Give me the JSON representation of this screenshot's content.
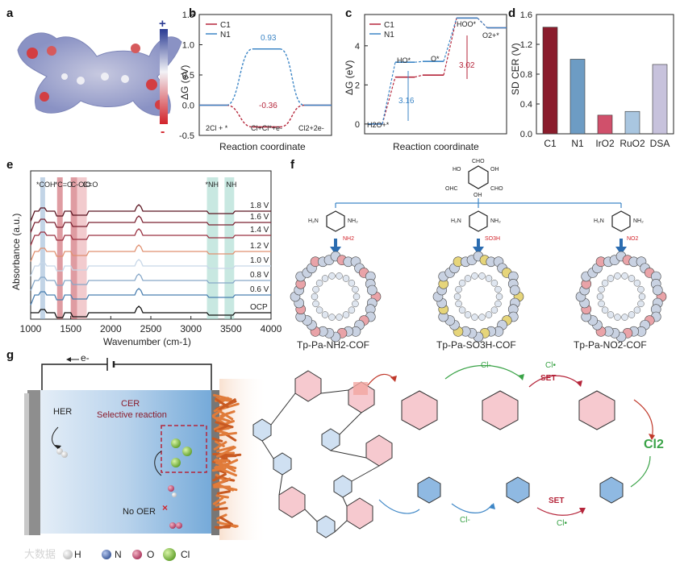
{
  "panel_labels": {
    "a": "a",
    "b": "b",
    "c": "c",
    "d": "d",
    "e": "e",
    "f": "f",
    "g": "g"
  },
  "panel_a": {
    "scale_plus": "+",
    "scale_minus": "-"
  },
  "chart_data": [
    {
      "panel": "b",
      "type": "line",
      "xlabel": "Reaction coordinate",
      "ylabel": "ΔG (eV)",
      "ylim": [
        -0.5,
        1.5
      ],
      "yticks": [
        "1.5",
        "1.0",
        "0.5",
        "0.0",
        "-0.5"
      ],
      "states": [
        "2Cl + *",
        "Cl+Cl*+e-",
        "Cl2+2e-"
      ],
      "series": [
        {
          "name": "C1",
          "color": "#b5253a",
          "values": [
            0,
            -0.36,
            0
          ]
        },
        {
          "name": "N1",
          "color": "#3d86c6",
          "values": [
            0,
            0.93,
            0
          ]
        }
      ],
      "annotations": [
        "0.93",
        "-0.36"
      ]
    },
    {
      "panel": "c",
      "type": "line",
      "xlabel": "Reaction coordinate",
      "ylabel": "ΔG (eV)",
      "ylim": [
        -0.5,
        5.6
      ],
      "yticks": [
        "4",
        "2",
        "0"
      ],
      "states": [
        "H2O+*",
        "HO*",
        "O*",
        "HOO*",
        "O2+*"
      ],
      "series": [
        {
          "name": "C1",
          "color": "#b5253a",
          "values": [
            0,
            2.4,
            2.5,
            5.42,
            4.92
          ]
        },
        {
          "name": "N1",
          "color": "#3d86c6",
          "values": [
            0,
            3.16,
            3.2,
            5.42,
            4.92
          ]
        }
      ],
      "annotations": [
        "3.02",
        "3.16"
      ]
    },
    {
      "panel": "d",
      "type": "bar",
      "ylabel": "SD CER (V)",
      "ylim": [
        0,
        1.6
      ],
      "yticks": [
        "1.6",
        "1.2",
        "0.8",
        "0.4",
        "0.0"
      ],
      "categories": [
        "C1",
        "N1",
        "IrO2",
        "RuO2",
        "DSA"
      ],
      "values": [
        1.43,
        1.0,
        0.25,
        0.3,
        0.93
      ],
      "colors": [
        "#8a1c2c",
        "#6d9cc4",
        "#d0506b",
        "#a9c6e0",
        "#c7c2dc"
      ]
    },
    {
      "panel": "e",
      "type": "line",
      "xlabel": "Wavenumber (cm-1)",
      "ylabel": "Absorbance (a.u.)",
      "xlim": [
        1000,
        4000
      ],
      "xticks": [
        "1000",
        "1500",
        "2000",
        "2500",
        "3000",
        "3500",
        "4000"
      ],
      "series_labels": [
        "1.8 V",
        "1.6 V",
        "1.4 V",
        "1.2 V",
        "1.0 V",
        "0.8 V",
        "0.6 V",
        "OCP"
      ],
      "band_labels": [
        "*COH",
        "*C=O",
        "C-ClO",
        "C=O",
        "*NH",
        "NH"
      ]
    }
  ],
  "panel_f": {
    "linker_labels": [
      "NH2",
      "SO3H",
      "NO2"
    ],
    "cof_names": [
      "Tp-Pa-NH2-COF",
      "Tp-Pa-SO3H-COF",
      "Tp-Pa-NO2-COF"
    ]
  },
  "panel_g": {
    "electron": "e-",
    "her": "HER",
    "cer_line1": "CER",
    "cer_line2": "Selective reaction",
    "no_oer": "No OER",
    "legend": [
      {
        "symbol": "H",
        "color": "#e8e8e8"
      },
      {
        "symbol": "N",
        "color": "#4f6fae"
      },
      {
        "symbol": "O",
        "color": "#c2456a"
      },
      {
        "symbol": "Cl",
        "color": "#8bc34a"
      }
    ],
    "mech_labels": {
      "cl_minus": "Cl-",
      "cl_rad": "Cl•",
      "set": "SET",
      "cl2": "Cl2"
    },
    "watermark": "大数据"
  }
}
